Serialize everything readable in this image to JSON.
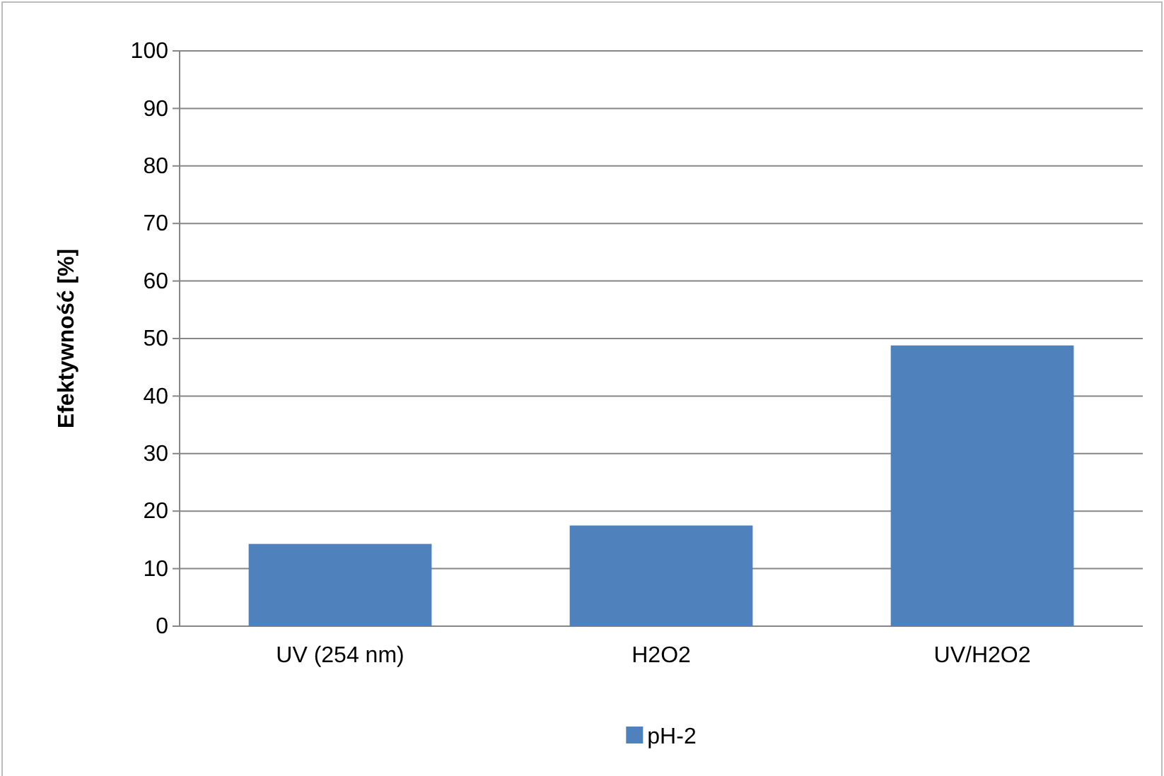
{
  "chart_data": {
    "type": "bar",
    "ylabel": "Efektywność [%]",
    "categories": [
      "UV (254 nm)",
      "H2O2",
      "UV/H2O2"
    ],
    "series": [
      {
        "name": "pH-2",
        "color": "#4f81bd",
        "values": [
          14.3,
          17.5,
          48.8
        ]
      }
    ],
    "ylim": [
      0,
      100
    ],
    "yticks": [
      0,
      10,
      20,
      30,
      40,
      50,
      60,
      70,
      80,
      90,
      100
    ],
    "grid": "y",
    "legend": "bottom"
  }
}
